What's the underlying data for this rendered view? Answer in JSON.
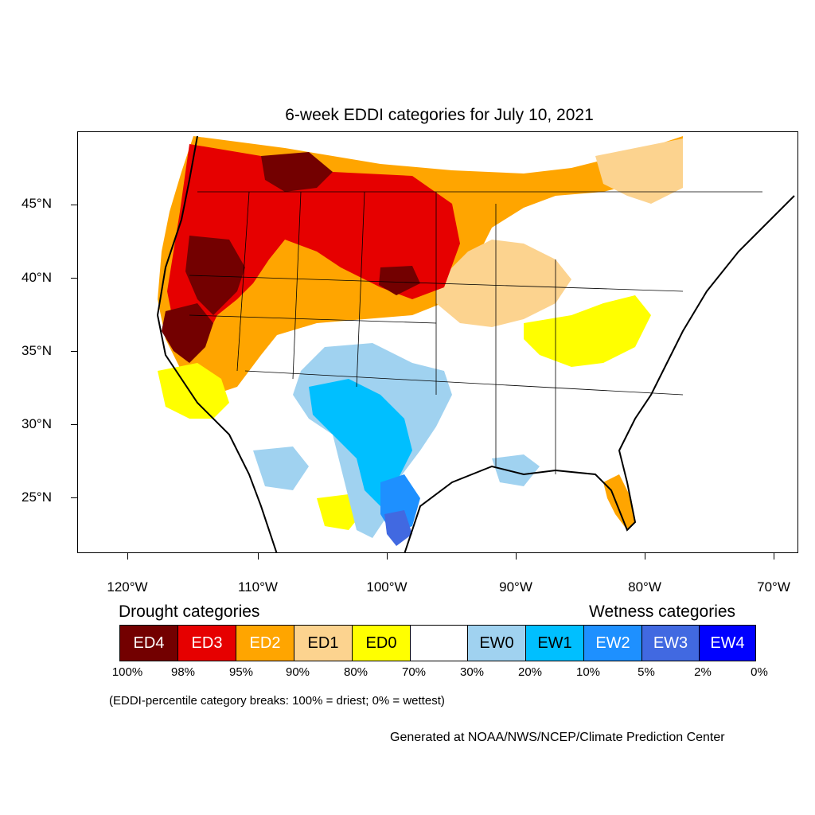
{
  "title": "6-week EDDI categories for July 10, 2021",
  "axes": {
    "lat_labels": [
      "45°N",
      "40°N",
      "35°N",
      "30°N",
      "25°N"
    ],
    "lon_labels": [
      "120°W",
      "110°W",
      "100°W",
      "90°W",
      "80°W",
      "70°W"
    ]
  },
  "legend": {
    "drought_heading": "Drought categories",
    "wetness_heading": "Wetness categories",
    "categories": [
      {
        "label": "ED4",
        "color": "#730000",
        "text_color": "#ffffff"
      },
      {
        "label": "ED3",
        "color": "#e60000",
        "text_color": "#ffffff"
      },
      {
        "label": "ED2",
        "color": "#ffa500",
        "text_color": "#ffffff"
      },
      {
        "label": "ED1",
        "color": "#fcd38f",
        "text_color": "#000000"
      },
      {
        "label": "ED0",
        "color": "#ffff00",
        "text_color": "#000000"
      },
      {
        "label": "",
        "color": "#ffffff",
        "text_color": "#000000"
      },
      {
        "label": "EW0",
        "color": "#a0d2f0",
        "text_color": "#000000"
      },
      {
        "label": "EW1",
        "color": "#00bfff",
        "text_color": "#000000"
      },
      {
        "label": "EW2",
        "color": "#1e90ff",
        "text_color": "#ffffff"
      },
      {
        "label": "EW3",
        "color": "#4169e1",
        "text_color": "#ffffff"
      },
      {
        "label": "EW4",
        "color": "#0000ff",
        "text_color": "#ffffff"
      }
    ],
    "percent_breaks": [
      "100%",
      "98%",
      "95%",
      "90%",
      "80%",
      "70%",
      "30%",
      "20%",
      "10%",
      "5%",
      "2%",
      "0%"
    ],
    "note": "(EDDI-percentile category breaks: 100% = driest; 0% = wettest)"
  },
  "credit": "Generated at NOAA/NWS/NCEP/Climate Prediction Center"
}
